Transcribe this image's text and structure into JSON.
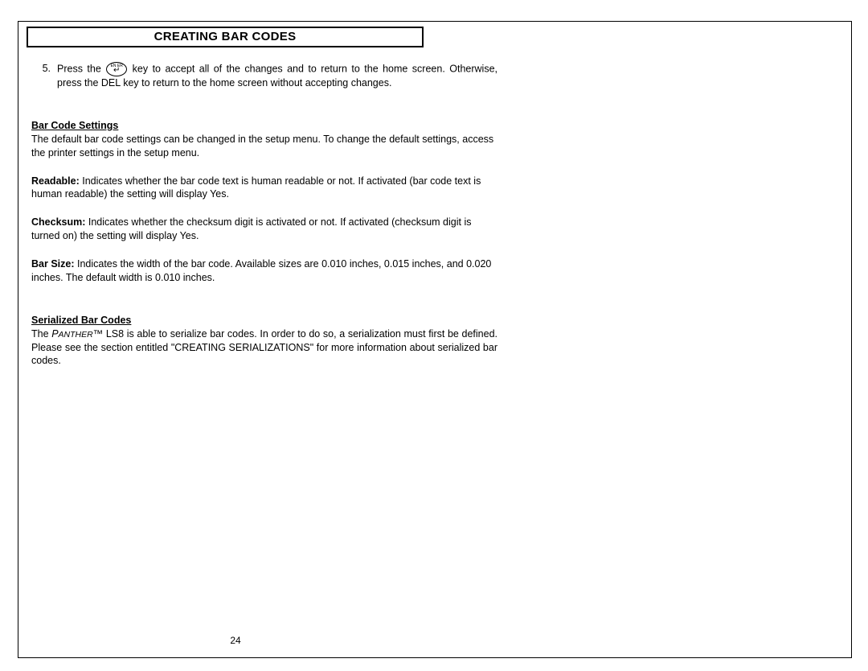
{
  "title": "CREATING BAR CODES",
  "step": {
    "number": "5.",
    "pre": "Press the ",
    "post": " key to accept all of the changes and to return to the home screen. Otherwise, press the DEL key to return to the home screen without accepting changes.",
    "icon_label": "EN ER"
  },
  "sections": {
    "settings": {
      "heading": "Bar Code Settings",
      "intro": "The default bar code settings can be changed in the setup menu.  To change the default settings, access the printer settings in the setup menu.",
      "readable_label": "Readable:",
      "readable_text": " Indicates whether the bar code text is human readable or not.  If activated (bar code text is human readable) the setting will display Yes.",
      "checksum_label": "Checksum:",
      "checksum_text": " Indicates whether the checksum digit is activated or not.  If activated (checksum digit is turned on) the setting will display Yes.",
      "barsize_label": "Bar Size:",
      "barsize_text": " Indicates the width of the bar code.  Available sizes are 0.010 inches, 0.015 inches, and 0.020 inches.  The default width is 0.010 inches."
    },
    "serialized": {
      "heading": "Serialized Bar Codes",
      "text_pre": "The ",
      "brand_first": "P",
      "brand_rest": "ANTHER",
      "text_post": "™ LS8 is able to serialize bar codes.  In order to do so, a serialization must first be defined.   Please see the section entitled \"CREATING SERIALIZATIONS\" for more information about serialized bar codes."
    }
  },
  "page_number": "24"
}
